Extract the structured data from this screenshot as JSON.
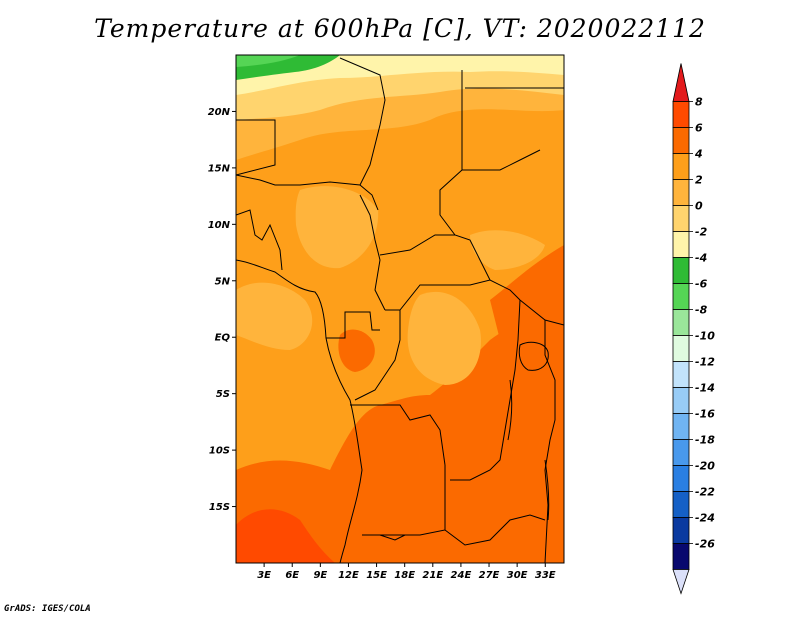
{
  "title": "Temperature at 600hPa [C], VT: 2020022112",
  "credit": "GrADS: IGES/COLA",
  "map": {
    "lat_labels": [
      "20N",
      "15N",
      "10N",
      "5N",
      "EQ",
      "5S",
      "10S",
      "15S"
    ],
    "lon_labels": [
      "3E",
      "6E",
      "9E",
      "12E",
      "15E",
      "18E",
      "21E",
      "24E",
      "27E",
      "30E",
      "33E"
    ],
    "lat_values": [
      20,
      15,
      10,
      5,
      0,
      -5,
      -10,
      -15
    ],
    "lon_values": [
      3,
      6,
      9,
      12,
      15,
      18,
      21,
      24,
      27,
      30,
      33
    ],
    "extent": {
      "lon_min": 0,
      "lon_max": 35,
      "lat_min": -20,
      "lat_max": 25
    }
  },
  "colorbar": {
    "labels": [
      "8",
      "6",
      "4",
      "2",
      "0",
      "-2",
      "-4",
      "-6",
      "-8",
      "-10",
      "-12",
      "-14",
      "-16",
      "-18",
      "-20",
      "-22",
      "-24",
      "-26"
    ],
    "colors": [
      "#e31a1c",
      "#ff4a00",
      "#fb6a00",
      "#fe9f1a",
      "#ffb43c",
      "#ffd46e",
      "#fff4aa",
      "#2fbb35",
      "#55d555",
      "#9ae69a",
      "#e0fbe0",
      "#c2e3fb",
      "#98ccf6",
      "#70b4f2",
      "#4999ec",
      "#2a7fe2",
      "#1560c6",
      "#0a3aa0",
      "#08086e",
      "#dbe0f9"
    ],
    "units": "C"
  }
}
